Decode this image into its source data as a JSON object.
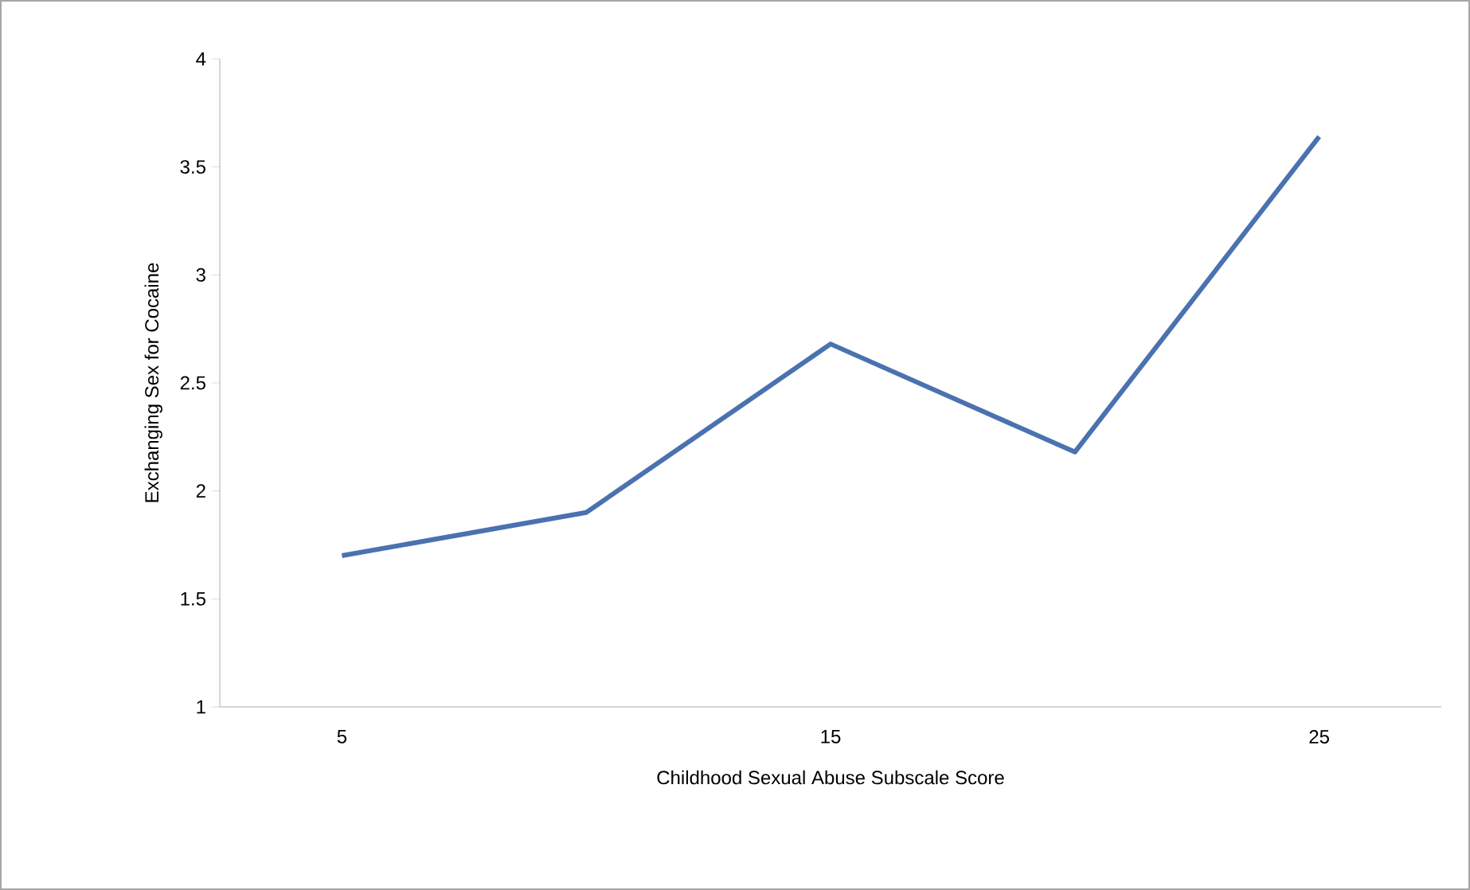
{
  "chart_data": {
    "type": "line",
    "xlabel": "Childhood Sexual Abuse Subscale Score",
    "ylabel": "Exchanging Sex for Cocaine",
    "categories": [
      "5",
      null,
      "15",
      null,
      "25"
    ],
    "series": [
      {
        "color": "#4a72b0",
        "values": [
          1.7,
          1.9,
          2.68,
          2.18,
          3.64
        ]
      }
    ],
    "ylim": [
      1,
      4
    ],
    "yticks": [
      1,
      1.5,
      2,
      2.5,
      3,
      3.5,
      4
    ],
    "marker": "none",
    "line_style": "solid"
  }
}
